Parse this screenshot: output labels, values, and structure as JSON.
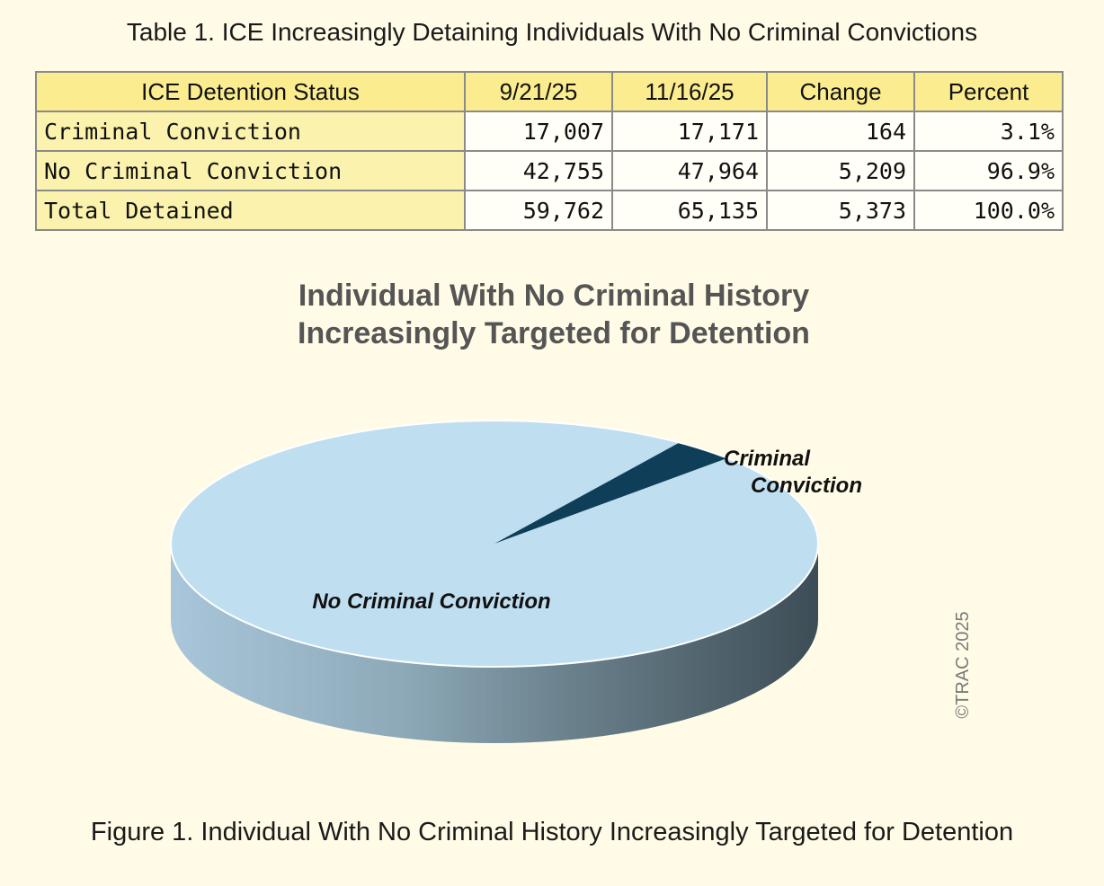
{
  "table": {
    "title": "Table 1. ICE Increasingly Detaining Individuals With No Criminal Convictions",
    "headers": [
      "ICE Detention Status",
      "9/21/25",
      "11/16/25",
      "Change",
      "Percent"
    ],
    "rows": [
      {
        "status": "Criminal Conviction",
        "d1": "17,007",
        "d2": "17,171",
        "change": "164",
        "percent": "3.1%"
      },
      {
        "status": "No Criminal Conviction",
        "d1": "42,755",
        "d2": "47,964",
        "change": "5,209",
        "percent": "96.9%"
      },
      {
        "status": "Total Detained",
        "d1": "59,762",
        "d2": "65,135",
        "change": "5,373",
        "percent": "100.0%"
      }
    ]
  },
  "chart_data": {
    "type": "pie",
    "title_lines": [
      "Individual With No Criminal History",
      "Increasingly Targeted for Detention"
    ],
    "slices": [
      {
        "label_lines": [
          "No Criminal Conviction"
        ],
        "value": 96.9,
        "color": "#bfdff1"
      },
      {
        "label_lines": [
          "Criminal",
          "Conviction"
        ],
        "value": 3.1,
        "color": "#0e3e58"
      }
    ],
    "watermark": "©TRAC 2025"
  },
  "figure_caption": "Figure 1. Individual With No Criminal History Increasingly Targeted for Detention"
}
